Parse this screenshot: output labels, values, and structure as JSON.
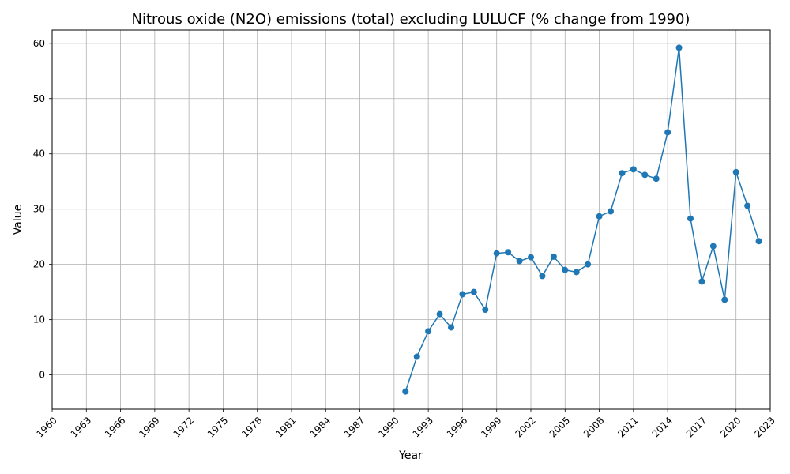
{
  "chart_data": {
    "type": "line",
    "title": "Nitrous oxide (N2O) emissions (total) excluding LULUCF (% change from 1990)",
    "xlabel": "Year",
    "ylabel": "Value",
    "xlim": [
      1960,
      2023
    ],
    "ylim": [
      -6.2,
      62.4
    ],
    "x_ticks": [
      "1960",
      "1963",
      "1966",
      "1969",
      "1972",
      "1975",
      "1978",
      "1981",
      "1984",
      "1987",
      "1990",
      "1993",
      "1996",
      "1999",
      "2002",
      "2005",
      "2008",
      "2011",
      "2014",
      "2017",
      "2020",
      "2023"
    ],
    "y_ticks": [
      "0",
      "10",
      "20",
      "30",
      "40",
      "50",
      "60"
    ],
    "grid": true,
    "color": "#1f77b4",
    "x": [
      1991,
      1992,
      1993,
      1994,
      1995,
      1996,
      1997,
      1998,
      1999,
      2000,
      2001,
      2002,
      2003,
      2004,
      2005,
      2006,
      2007,
      2008,
      2009,
      2010,
      2011,
      2012,
      2013,
      2014,
      2015,
      2016,
      2017,
      2018,
      2019,
      2020,
      2021,
      2022
    ],
    "values": [
      -3.0,
      3.3,
      7.9,
      11.0,
      8.6,
      14.6,
      15.0,
      11.8,
      22.0,
      22.2,
      20.6,
      21.3,
      17.9,
      21.4,
      19.0,
      18.6,
      20.0,
      28.7,
      29.6,
      36.5,
      37.2,
      36.2,
      35.5,
      43.9,
      59.2,
      28.3,
      16.9,
      23.3,
      13.6,
      36.7,
      30.6,
      24.2
    ]
  }
}
